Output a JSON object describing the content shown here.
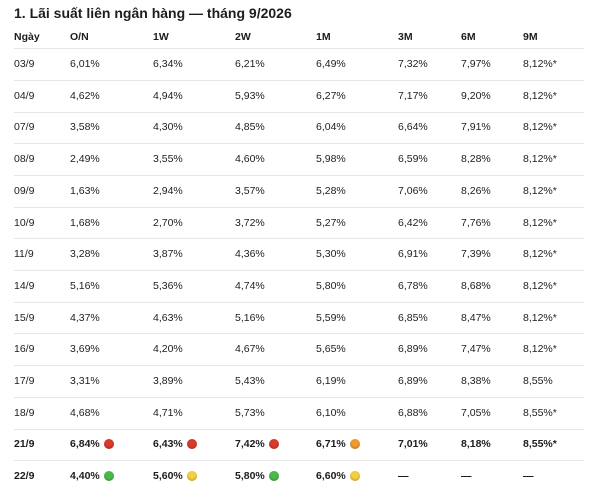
{
  "header": {
    "title": "1. Lãi suất liên ngân hàng — tháng 9/2026"
  },
  "table": {
    "columns": [
      "Ngày",
      "O/N",
      "1W",
      "2W",
      "1M",
      "3M",
      "6M",
      "9M"
    ],
    "rows": [
      {
        "cells": [
          "03/9",
          "6,01%",
          "6,34%",
          "6,21%",
          "6,49%",
          "7,32%",
          "7,97%",
          "8,12%*"
        ]
      },
      {
        "cells": [
          "04/9",
          "4,62%",
          "4,94%",
          "5,93%",
          "6,27%",
          "7,17%",
          "9,20%",
          "8,12%*"
        ]
      },
      {
        "cells": [
          "07/9",
          "3,58%",
          "4,30%",
          "4,85%",
          "6,04%",
          "6,64%",
          "7,91%",
          "8,12%*"
        ]
      },
      {
        "cells": [
          "08/9",
          "2,49%",
          "3,55%",
          "4,60%",
          "5,98%",
          "6,59%",
          "8,28%",
          "8,12%*"
        ]
      },
      {
        "cells": [
          "09/9",
          "1,63%",
          "2,94%",
          "3,57%",
          "5,28%",
          "7,06%",
          "8,26%",
          "8,12%*"
        ]
      },
      {
        "cells": [
          "10/9",
          "1,68%",
          "2,70%",
          "3,72%",
          "5,27%",
          "6,42%",
          "7,76%",
          "8,12%*"
        ]
      },
      {
        "cells": [
          "11/9",
          "3,28%",
          "3,87%",
          "4,36%",
          "5,30%",
          "6,91%",
          "7,39%",
          "8,12%*"
        ]
      },
      {
        "cells": [
          "14/9",
          "5,16%",
          "5,36%",
          "4,74%",
          "5,80%",
          "6,78%",
          "8,68%",
          "8,12%*"
        ]
      },
      {
        "cells": [
          "15/9",
          "4,37%",
          "4,63%",
          "5,16%",
          "5,59%",
          "6,85%",
          "8,47%",
          "8,12%*"
        ]
      },
      {
        "cells": [
          "16/9",
          "3,69%",
          "4,20%",
          "4,67%",
          "5,65%",
          "6,89%",
          "7,47%",
          "8,12%*"
        ]
      },
      {
        "cells": [
          "17/9",
          "3,31%",
          "3,89%",
          "5,43%",
          "6,19%",
          "6,89%",
          "8,38%",
          "8,55%"
        ]
      },
      {
        "cells": [
          "18/9",
          "4,68%",
          "4,71%",
          "5,73%",
          "6,10%",
          "6,88%",
          "7,05%",
          "8,55%*"
        ]
      },
      {
        "bold": true,
        "cells": [
          "21/9",
          {
            "text": "6,84%",
            "dot": "#d93a2b"
          },
          {
            "text": "6,43%",
            "dot": "#d93a2b"
          },
          {
            "text": "7,42%",
            "dot": "#d93a2b"
          },
          {
            "text": "6,71%",
            "dot": "#ef9a2c"
          },
          "7,01%",
          "8,18%",
          "8,55%*"
        ]
      },
      {
        "bold": true,
        "cells": [
          "22/9",
          {
            "text": "4,40%",
            "dot": "#4cb84a"
          },
          {
            "text": "5,60%",
            "dot": "#f4d03f"
          },
          {
            "text": "5,80%",
            "dot": "#4cb84a"
          },
          {
            "text": "6,60%",
            "dot": "#f4d03f"
          },
          "—",
          "—",
          "—"
        ]
      }
    ]
  }
}
